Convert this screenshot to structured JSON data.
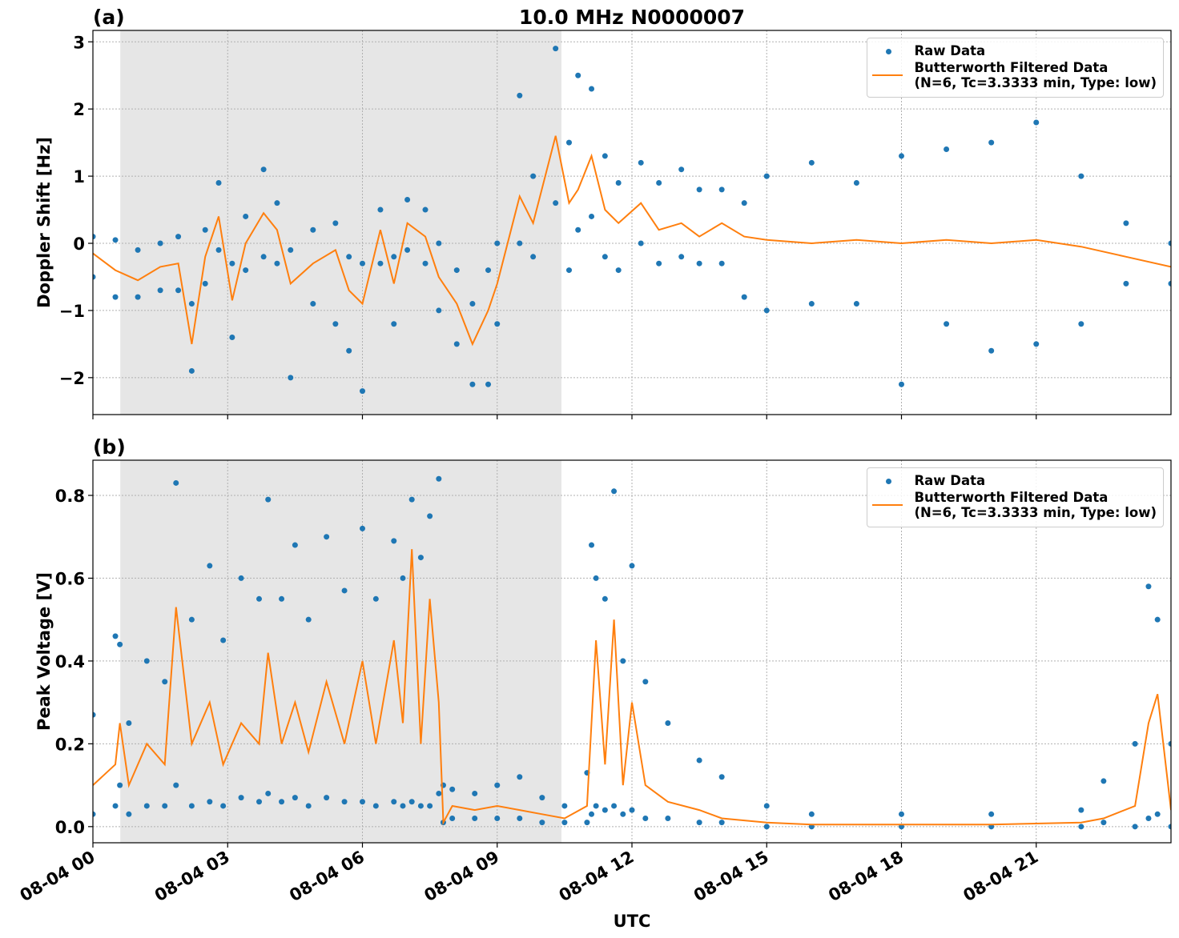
{
  "chart_data": [
    {
      "type": "scatter-line",
      "panel_label": "(a)",
      "title": "10.0 MHz N0000007",
      "ylabel": "Doppler Shift [Hz]",
      "xlim": [
        0,
        24
      ],
      "xticks": [
        0,
        3,
        6,
        9,
        12,
        15,
        18,
        21
      ],
      "ylim": [
        -2.55,
        3.17
      ],
      "yticks": [
        {
          "value": -2,
          "label": "−2"
        },
        {
          "value": -1,
          "label": "−1"
        },
        0,
        1,
        2,
        3
      ],
      "grid": true,
      "shade": [
        0.61,
        10.43
      ],
      "legend": "upper right",
      "series": [
        {
          "name": "Raw Data",
          "kind": "scatter",
          "color": "#1f77b4",
          "x": [
            0,
            0,
            0.5,
            0.5,
            1,
            1,
            1.5,
            1.5,
            1.9,
            1.9,
            2.2,
            2.2,
            2.5,
            2.5,
            2.8,
            2.8,
            3.1,
            3.1,
            3.4,
            3.4,
            3.8,
            3.8,
            4.1,
            4.1,
            4.4,
            4.4,
            4.9,
            4.9,
            5.4,
            5.4,
            5.7,
            5.7,
            6,
            6,
            6.4,
            6.4,
            6.7,
            6.7,
            7,
            7,
            7.4,
            7.4,
            7.7,
            7.7,
            8.1,
            8.1,
            8.45,
            8.45,
            8.8,
            8.8,
            9,
            9,
            9.5,
            9.5,
            9.8,
            9.8,
            10.3,
            10.3,
            10.6,
            10.6,
            10.8,
            10.8,
            11.1,
            11.1,
            11.4,
            11.4,
            11.7,
            11.7,
            12.2,
            12.2,
            12.6,
            12.6,
            13.1,
            13.1,
            13.5,
            13.5,
            14,
            14,
            14.5,
            14.5,
            15,
            15,
            16,
            16,
            17,
            17,
            18,
            18,
            19,
            19,
            20,
            20,
            21,
            21,
            22,
            22,
            23,
            23,
            24,
            24
          ],
          "values": [
            0.1,
            -0.5,
            0.05,
            -0.8,
            -0.1,
            -0.8,
            0.0,
            -0.7,
            0.1,
            -0.7,
            -0.9,
            -1.9,
            0.2,
            -0.6,
            0.9,
            -0.1,
            -0.3,
            -1.4,
            0.4,
            -0.4,
            1.1,
            -0.2,
            0.6,
            -0.3,
            -0.1,
            -2.0,
            0.2,
            -0.9,
            0.3,
            -1.2,
            -0.2,
            -1.6,
            -0.3,
            -2.2,
            0.5,
            -0.3,
            -0.2,
            -1.2,
            0.65,
            -0.1,
            0.5,
            -0.3,
            0.0,
            -1.0,
            -0.4,
            -1.5,
            -0.9,
            -2.1,
            -0.4,
            -2.1,
            0.0,
            -1.2,
            2.2,
            0.0,
            1.0,
            -0.2,
            2.9,
            0.6,
            1.5,
            -0.4,
            2.5,
            0.2,
            2.3,
            0.4,
            1.3,
            -0.2,
            0.9,
            -0.4,
            1.2,
            0.0,
            0.9,
            -0.3,
            1.1,
            -0.2,
            0.8,
            -0.3,
            0.8,
            -0.3,
            0.6,
            -0.8,
            1.0,
            -1.0,
            1.2,
            -0.9,
            0.9,
            -0.9,
            1.3,
            -2.1,
            1.4,
            -1.2,
            1.5,
            -1.6,
            1.8,
            -1.5,
            1.0,
            -1.2,
            0.3,
            -0.6,
            0.0,
            -0.6
          ]
        },
        {
          "name": "Butterworth Filtered Data\n(N=6, Tc=3.3333 min, Type: low)",
          "kind": "line",
          "color": "#ff7f0e",
          "x": [
            0,
            0.5,
            1,
            1.5,
            1.9,
            2.2,
            2.5,
            2.8,
            3.1,
            3.4,
            3.8,
            4.1,
            4.4,
            4.9,
            5.4,
            5.7,
            6,
            6.4,
            6.7,
            7,
            7.4,
            7.7,
            8.1,
            8.45,
            8.8,
            9,
            9.5,
            9.8,
            10.3,
            10.6,
            10.8,
            11.1,
            11.4,
            11.7,
            12.2,
            12.6,
            13.1,
            13.5,
            14,
            14.5,
            15,
            16,
            17,
            18,
            19,
            20,
            21,
            22,
            23,
            24
          ],
          "values": [
            -0.15,
            -0.4,
            -0.55,
            -0.35,
            -0.3,
            -1.5,
            -0.2,
            0.4,
            -0.85,
            0.0,
            0.45,
            0.2,
            -0.6,
            -0.3,
            -0.1,
            -0.7,
            -0.9,
            0.2,
            -0.6,
            0.3,
            0.1,
            -0.5,
            -0.9,
            -1.5,
            -1.0,
            -0.6,
            0.7,
            0.3,
            1.6,
            0.6,
            0.8,
            1.3,
            0.5,
            0.3,
            0.6,
            0.2,
            0.3,
            0.1,
            0.3,
            0.1,
            0.05,
            0.0,
            0.05,
            0.0,
            0.05,
            0.0,
            0.05,
            -0.05,
            -0.2,
            -0.35
          ]
        }
      ]
    },
    {
      "type": "scatter-line",
      "panel_label": "(b)",
      "ylabel": "Peak Voltage [V]",
      "xlabel": "UTC",
      "xlim": [
        0,
        24
      ],
      "xticks": [
        {
          "value": 0,
          "label": "08-04 00"
        },
        {
          "value": 3,
          "label": "08-04 03"
        },
        {
          "value": 6,
          "label": "08-04 06"
        },
        {
          "value": 9,
          "label": "08-04 09"
        },
        {
          "value": 12,
          "label": "08-04 12"
        },
        {
          "value": 15,
          "label": "08-04 15"
        },
        {
          "value": 18,
          "label": "08-04 18"
        },
        {
          "value": 21,
          "label": "08-04 21"
        }
      ],
      "ylim": [
        -0.039,
        0.885
      ],
      "yticks": [
        {
          "value": 0,
          "label": "0.0"
        },
        0.2,
        0.4,
        0.6,
        0.8
      ],
      "grid": true,
      "shade": [
        0.61,
        10.43
      ],
      "legend": "upper right",
      "series": [
        {
          "name": "Raw Data",
          "kind": "scatter",
          "color": "#1f77b4",
          "x": [
            0,
            0,
            0.5,
            0.5,
            0.6,
            0.6,
            0.8,
            0.8,
            1.2,
            1.2,
            1.6,
            1.6,
            1.85,
            1.85,
            2.2,
            2.2,
            2.6,
            2.6,
            2.9,
            2.9,
            3.3,
            3.3,
            3.7,
            3.7,
            3.9,
            3.9,
            4.2,
            4.2,
            4.5,
            4.5,
            4.8,
            4.8,
            5.2,
            5.2,
            5.6,
            5.6,
            6,
            6,
            6.3,
            6.3,
            6.7,
            6.7,
            6.9,
            6.9,
            7.1,
            7.1,
            7.3,
            7.3,
            7.5,
            7.5,
            7.7,
            7.7,
            7.8,
            7.8,
            8,
            8,
            8.5,
            8.5,
            9,
            9,
            9.5,
            9.5,
            10,
            10,
            10.5,
            10.5,
            11,
            11,
            11.1,
            11.1,
            11.2,
            11.2,
            11.4,
            11.4,
            11.6,
            11.6,
            11.8,
            11.8,
            12,
            12,
            12.3,
            12.3,
            12.8,
            12.8,
            13.5,
            13.5,
            14,
            14,
            15,
            15,
            16,
            16,
            18,
            18,
            20,
            20,
            22,
            22,
            22.5,
            22.5,
            23.2,
            23.2,
            23.5,
            23.5,
            23.7,
            23.7,
            24,
            24
          ],
          "values": [
            0.27,
            0.03,
            0.46,
            0.05,
            0.44,
            0.1,
            0.25,
            0.03,
            0.4,
            0.05,
            0.35,
            0.05,
            0.83,
            0.1,
            0.5,
            0.05,
            0.63,
            0.06,
            0.45,
            0.05,
            0.6,
            0.07,
            0.55,
            0.06,
            0.79,
            0.08,
            0.55,
            0.06,
            0.68,
            0.07,
            0.5,
            0.05,
            0.7,
            0.07,
            0.57,
            0.06,
            0.72,
            0.06,
            0.55,
            0.05,
            0.69,
            0.06,
            0.6,
            0.05,
            0.79,
            0.06,
            0.65,
            0.05,
            0.75,
            0.05,
            0.84,
            0.08,
            0.1,
            0.01,
            0.09,
            0.02,
            0.08,
            0.02,
            0.1,
            0.02,
            0.12,
            0.02,
            0.07,
            0.01,
            0.05,
            0.01,
            0.13,
            0.01,
            0.68,
            0.03,
            0.6,
            0.05,
            0.55,
            0.04,
            0.81,
            0.05,
            0.4,
            0.03,
            0.63,
            0.04,
            0.35,
            0.02,
            0.25,
            0.02,
            0.16,
            0.01,
            0.12,
            0.01,
            0.05,
            0.0,
            0.03,
            0.0,
            0.03,
            0.0,
            0.03,
            0.0,
            0.04,
            0.0,
            0.11,
            0.01,
            0.2,
            0.0,
            0.58,
            0.02,
            0.5,
            0.03,
            0.2,
            0.0
          ]
        },
        {
          "name": "Butterworth Filtered Data\n(N=6, Tc=3.3333 min, Type: low)",
          "kind": "line",
          "color": "#ff7f0e",
          "x": [
            0,
            0.5,
            0.6,
            0.8,
            1.2,
            1.6,
            1.85,
            2.2,
            2.6,
            2.9,
            3.3,
            3.7,
            3.9,
            4.2,
            4.5,
            4.8,
            5.2,
            5.6,
            6,
            6.3,
            6.7,
            6.9,
            7.1,
            7.3,
            7.5,
            7.7,
            7.8,
            8,
            8.5,
            9,
            9.5,
            10,
            10.5,
            11,
            11.1,
            11.2,
            11.4,
            11.6,
            11.8,
            12,
            12.3,
            12.8,
            13.5,
            14,
            15,
            16,
            18,
            20,
            22,
            22.5,
            23.2,
            23.5,
            23.7,
            24
          ],
          "values": [
            0.1,
            0.15,
            0.25,
            0.1,
            0.2,
            0.15,
            0.53,
            0.2,
            0.3,
            0.15,
            0.25,
            0.2,
            0.42,
            0.2,
            0.3,
            0.18,
            0.35,
            0.2,
            0.4,
            0.2,
            0.45,
            0.25,
            0.67,
            0.2,
            0.55,
            0.3,
            0.01,
            0.05,
            0.04,
            0.05,
            0.04,
            0.03,
            0.02,
            0.05,
            0.25,
            0.45,
            0.15,
            0.5,
            0.1,
            0.3,
            0.1,
            0.06,
            0.04,
            0.02,
            0.01,
            0.005,
            0.005,
            0.005,
            0.01,
            0.02,
            0.05,
            0.25,
            0.32,
            0.04
          ]
        }
      ]
    }
  ]
}
